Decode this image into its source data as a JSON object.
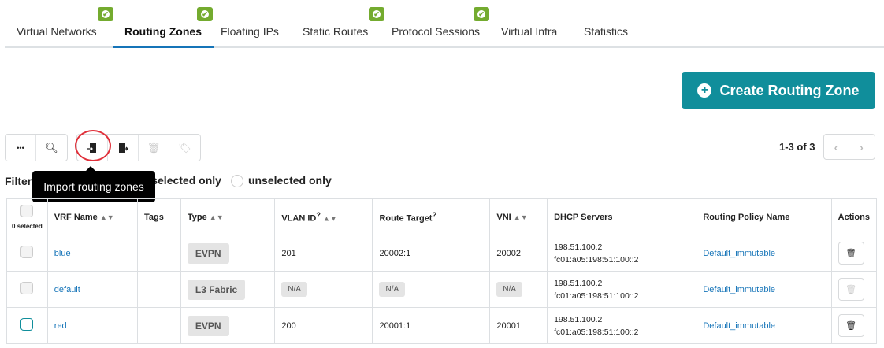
{
  "tabs": [
    {
      "label": "Virtual Networks",
      "badge": true
    },
    {
      "label": "Routing Zones",
      "badge": true,
      "active": true
    },
    {
      "label": "Floating IPs",
      "badge": false
    },
    {
      "label": "Static Routes",
      "badge": true
    },
    {
      "label": "Protocol Sessions",
      "badge": true
    },
    {
      "label": "Virtual Infra",
      "badge": false
    },
    {
      "label": "Statistics",
      "badge": false
    }
  ],
  "create_button": "Create Routing Zone",
  "toolbar": {
    "more": "•••",
    "tooltip": "Import routing zones",
    "icons": [
      "more-icon",
      "search-icon",
      "import-icon",
      "export-icon",
      "trash-icon",
      "tag-icon"
    ]
  },
  "filter": {
    "label": "Filter",
    "selected_only": "selected only",
    "unselected_only": "unselected only"
  },
  "pager": {
    "text": "1-3 of 3"
  },
  "table": {
    "selected_count": "0 selected",
    "headers": [
      "VRF Name",
      "Tags",
      "Type",
      "VLAN ID",
      "Route Target",
      "VNI",
      "DHCP Servers",
      "Routing Policy Name",
      "Actions"
    ],
    "rows": [
      {
        "name": "blue",
        "tags": "",
        "type": "EVPN",
        "vlan": "201",
        "rt": "20002:1",
        "vni": "20002",
        "dhcp1": "198.51.100.2",
        "dhcp2": "fc01:a05:198:51:100::2",
        "policy": "Default_immutable"
      },
      {
        "name": "default",
        "tags": "",
        "type": "L3 Fabric",
        "vlan": "N/A",
        "rt": "N/A",
        "vni": "N/A",
        "dhcp1": "198.51.100.2",
        "dhcp2": "fc01:a05:198:51:100::2",
        "policy": "Default_immutable"
      },
      {
        "name": "red",
        "tags": "",
        "type": "EVPN",
        "vlan": "200",
        "rt": "20001:1",
        "vni": "20001",
        "dhcp1": "198.51.100.2",
        "dhcp2": "fc01:a05:198:51:100::2",
        "policy": "Default_immutable"
      }
    ]
  },
  "colors": {
    "accent": "#108e9b",
    "link": "#1574b8",
    "badge": "#74ab2f",
    "highlight": "#e0303a"
  }
}
